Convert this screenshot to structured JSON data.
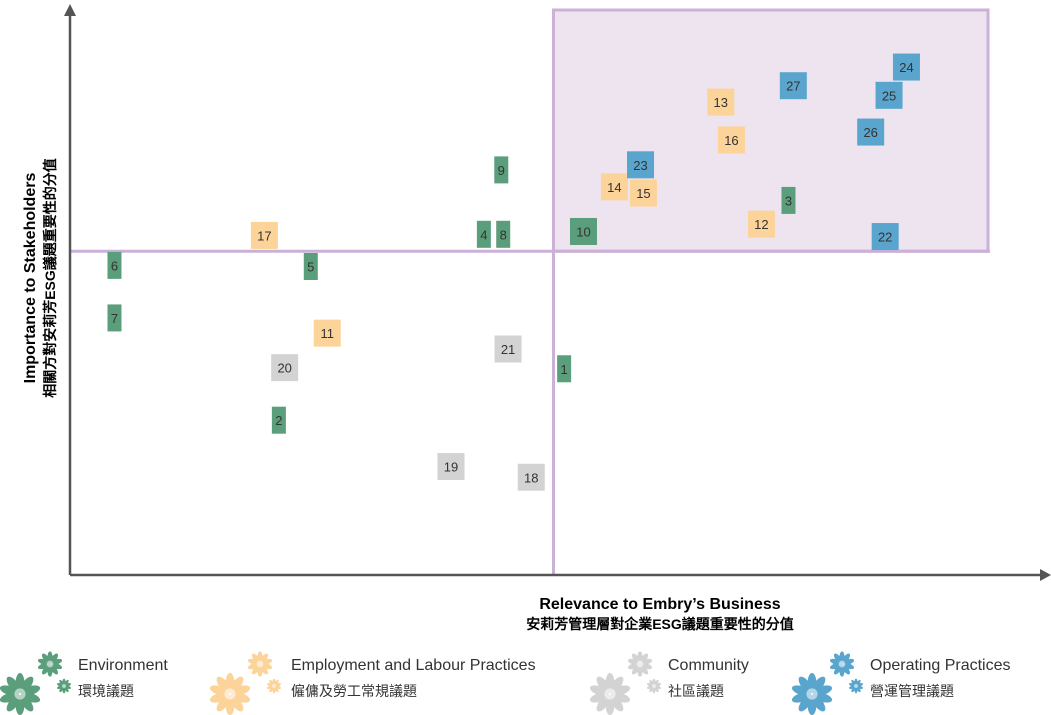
{
  "chart_data": {
    "type": "scatter",
    "title": "",
    "xlabel": "Relevance to Embry’s Business",
    "xlabel_zh": "安莉芳管理層對企業ESG議題重要性的分值",
    "ylabel": "Importance to Stakeholders",
    "ylabel_zh": "相關方對安莉芳ESG議題重要性的分值",
    "xlim": [
      0,
      100
    ],
    "ylim": [
      0,
      100
    ],
    "grid": false,
    "legend_position": "bottom",
    "highlight_quadrant": "top-right",
    "colors": {
      "environment": "#5a9e7c",
      "employment": "#fcd399",
      "community": "#d3d3d3",
      "operating": "#5aa5cd",
      "quadrant_line": "#cbb0d8",
      "quadrant_fill": "#eee4ef"
    },
    "series": [
      {
        "name": "Environment",
        "name_zh": "環境議題",
        "color": "#5a9e7c",
        "points": [
          {
            "label": "1",
            "x": 51.1,
            "y": 36.5
          },
          {
            "label": "2",
            "x": 21.6,
            "y": 27.4
          },
          {
            "label": "3",
            "x": 74.3,
            "y": 66.3
          },
          {
            "label": "4",
            "x": 42.8,
            "y": 60.3
          },
          {
            "label": "5",
            "x": 24.9,
            "y": 54.6
          },
          {
            "label": "6",
            "x": 4.6,
            "y": 54.8
          },
          {
            "label": "7",
            "x": 4.6,
            "y": 45.5
          },
          {
            "label": "8",
            "x": 44.8,
            "y": 60.3
          },
          {
            "label": "9",
            "x": 44.6,
            "y": 71.7
          },
          {
            "label": "10",
            "x": 53.1,
            "y": 60.8
          }
        ]
      },
      {
        "name": "Employment and Labour Practices",
        "name_zh": "僱傭及勞工常規議題",
        "color": "#fcd399",
        "points": [
          {
            "label": "11",
            "x": 26.6,
            "y": 42.8
          },
          {
            "label": "12",
            "x": 71.5,
            "y": 62.1
          },
          {
            "label": "13",
            "x": 67.3,
            "y": 83.7
          },
          {
            "label": "14",
            "x": 56.3,
            "y": 68.7
          },
          {
            "label": "15",
            "x": 59.3,
            "y": 67.6
          },
          {
            "label": "16",
            "x": 68.4,
            "y": 77.0
          },
          {
            "label": "17",
            "x": 20.1,
            "y": 60.1
          }
        ]
      },
      {
        "name": "Community",
        "name_zh": "社區議題",
        "color": "#d3d3d3",
        "points": [
          {
            "label": "18",
            "x": 47.7,
            "y": 17.3
          },
          {
            "label": "19",
            "x": 39.4,
            "y": 19.2
          },
          {
            "label": "20",
            "x": 22.2,
            "y": 36.7
          },
          {
            "label": "21",
            "x": 45.3,
            "y": 40.0
          }
        ]
      },
      {
        "name": "Operating Practices",
        "name_zh": "營運管理議題",
        "color": "#5aa5cd",
        "points": [
          {
            "label": "22",
            "x": 84.3,
            "y": 59.9
          },
          {
            "label": "23",
            "x": 59.0,
            "y": 72.6
          },
          {
            "label": "24",
            "x": 86.5,
            "y": 89.9
          },
          {
            "label": "25",
            "x": 84.7,
            "y": 84.9
          },
          {
            "label": "26",
            "x": 82.8,
            "y": 78.4
          },
          {
            "label": "27",
            "x": 74.8,
            "y": 86.6
          }
        ]
      }
    ]
  }
}
